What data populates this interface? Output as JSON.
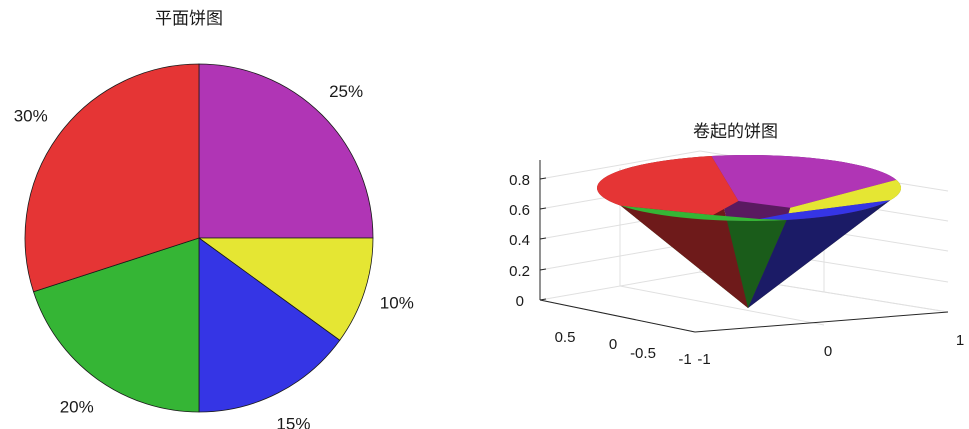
{
  "chart_data": [
    {
      "type": "pie",
      "title": "平面饼图",
      "categories": [
        "25%",
        "10%",
        "15%",
        "20%",
        "30%"
      ],
      "values": [
        25,
        10,
        15,
        20,
        30
      ],
      "colors": [
        "#b035b5",
        "#e5e633",
        "#3535e5",
        "#35b535",
        "#e53535"
      ],
      "labels": [
        "25%",
        "10%",
        "15%",
        "20%",
        "30%"
      ],
      "start": "top",
      "direction": "clockwise"
    },
    {
      "type": "pie",
      "variant": "3d-curled",
      "title": "卷起的饼图",
      "values": [
        25,
        10,
        15,
        20,
        30
      ],
      "colors": [
        "#b035b5",
        "#e5e633",
        "#3535e5",
        "#35b535",
        "#e53535"
      ],
      "z_ticks": [
        "0",
        "0.2",
        "0.4",
        "0.6",
        "0.8"
      ],
      "x_ticks": [
        "-1",
        "0",
        "1"
      ],
      "y_ticks": [
        "-1",
        "-0.5",
        "0",
        "0.5"
      ],
      "zlim": [
        0,
        0.8
      ],
      "grid": true
    }
  ]
}
